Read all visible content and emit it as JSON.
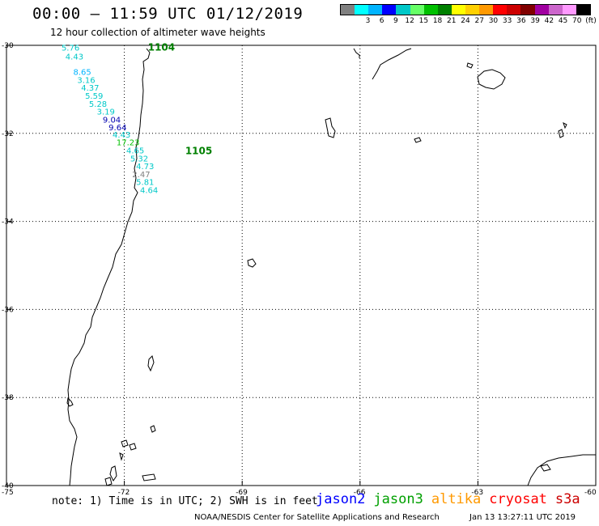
{
  "header": {
    "title": "00:00 – 11:59 UTC 01/12/2019",
    "subtitle": "12 hour collection of altimeter wave heights"
  },
  "legend": {
    "unit": "(ft)",
    "colors": [
      "#808080",
      "#00ffff",
      "#00b4ff",
      "#0000ff",
      "#00c8c8",
      "#66ff66",
      "#00c000",
      "#008000",
      "#ffff00",
      "#ffd000",
      "#ff9900",
      "#ff0000",
      "#cc0000",
      "#800000",
      "#a000a0",
      "#cc66cc",
      "#ff99ff",
      "#000000"
    ],
    "labels": [
      "3",
      "6",
      "9",
      "12",
      "15",
      "18",
      "21",
      "24",
      "27",
      "30",
      "33",
      "36",
      "39",
      "42",
      "45",
      "70"
    ]
  },
  "axes": {
    "lat_labels": [
      "-30",
      "-32",
      "-34",
      "-36",
      "-38",
      "-40"
    ],
    "lon_labels": [
      "-75",
      "-72",
      "-69",
      "-66",
      "-63",
      "-60"
    ],
    "lat_range": [
      -40,
      -30
    ],
    "lon_range": [
      -75,
      -60
    ]
  },
  "passes": [
    {
      "label": "1104",
      "lat": -30.05,
      "lon": -71.4,
      "color": "#008000"
    },
    {
      "label": "1105",
      "lat": -32.4,
      "lon": -70.45,
      "color": "#008000"
    }
  ],
  "swh_points": [
    {
      "value": "5.76",
      "lat": -30.05,
      "lon": -73.6,
      "color": "#00c8c8"
    },
    {
      "value": "4.43",
      "lat": -30.25,
      "lon": -73.5,
      "color": "#00c8c8"
    },
    {
      "value": "8.65",
      "lat": -30.6,
      "lon": -73.3,
      "color": "#00b4ff"
    },
    {
      "value": "3.16",
      "lat": -30.78,
      "lon": -73.2,
      "color": "#00c8c8"
    },
    {
      "value": "4.37",
      "lat": -30.96,
      "lon": -73.1,
      "color": "#00c8c8"
    },
    {
      "value": "5.59",
      "lat": -31.14,
      "lon": -73.0,
      "color": "#00c8c8"
    },
    {
      "value": "5.28",
      "lat": -31.32,
      "lon": -72.9,
      "color": "#00c8c8"
    },
    {
      "value": "3.19",
      "lat": -31.5,
      "lon": -72.7,
      "color": "#00c8c8"
    },
    {
      "value": "9.04",
      "lat": -31.68,
      "lon": -72.55,
      "color": "#0000b0"
    },
    {
      "value": "9.64",
      "lat": -31.86,
      "lon": -72.4,
      "color": "#0000b0"
    },
    {
      "value": "4.43",
      "lat": -32.02,
      "lon": -72.3,
      "color": "#00c8c8"
    },
    {
      "value": "17.23",
      "lat": -32.2,
      "lon": -72.2,
      "color": "#00c000"
    },
    {
      "value": "4.65",
      "lat": -32.38,
      "lon": -71.95,
      "color": "#00c8c8"
    },
    {
      "value": "5.32",
      "lat": -32.56,
      "lon": -71.85,
      "color": "#00c8c8"
    },
    {
      "value": "4.73",
      "lat": -32.74,
      "lon": -71.7,
      "color": "#00c8c8"
    },
    {
      "value": "2.47",
      "lat": -32.92,
      "lon": -71.8,
      "color": "#808080"
    },
    {
      "value": "5.81",
      "lat": -33.1,
      "lon": -71.7,
      "color": "#00c8c8"
    },
    {
      "value": "4.64",
      "lat": -33.28,
      "lon": -71.6,
      "color": "#00c8c8"
    }
  ],
  "footer": {
    "note": "note: 1) Time is in UTC; 2) SWH is in feet",
    "satellites": [
      {
        "name": "jason2",
        "color": "#0000ff"
      },
      {
        "name": "jason3",
        "color": "#00a000"
      },
      {
        "name": "altika",
        "color": "#ff9900"
      },
      {
        "name": "cryosat",
        "color": "#ff0000"
      },
      {
        "name": "s3a",
        "color": "#cc0000"
      }
    ],
    "credit": "NOAA/NESDIS Center for Satellite Applications and Research",
    "timestamp": "Jan 13 13:27:11 UTC 2019"
  }
}
